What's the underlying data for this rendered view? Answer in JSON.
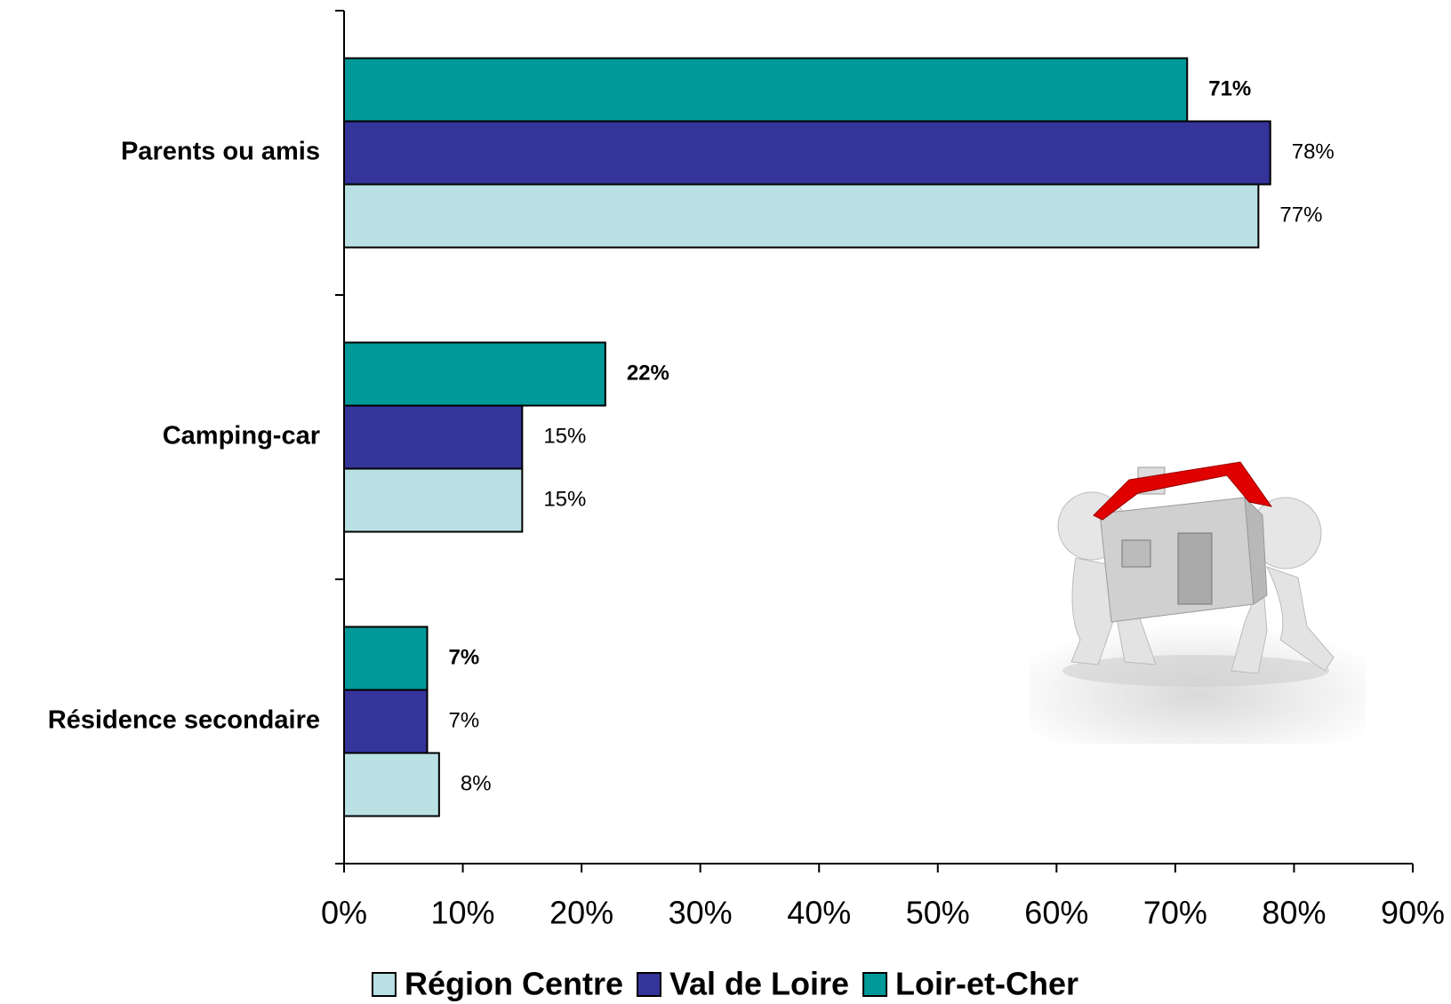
{
  "chart_data": {
    "type": "bar",
    "orientation": "horizontal",
    "categories": [
      "Parents ou amis",
      "Camping-car",
      "Résidence secondaire"
    ],
    "series": [
      {
        "name": "Région Centre",
        "color": "#b9e1e3",
        "values": [
          77,
          15,
          8
        ],
        "value_labels": [
          "77%",
          "15%",
          "8%"
        ]
      },
      {
        "name": "Val de Loire",
        "color": "#35349a",
        "values": [
          78,
          15,
          7
        ],
        "value_labels": [
          "78%",
          "15%",
          "7%"
        ]
      },
      {
        "name": "Loir-et-Cher",
        "color": "#009999",
        "values": [
          71,
          22,
          7
        ],
        "value_labels": [
          "71%",
          "22%",
          "7%"
        ]
      }
    ],
    "xlim": [
      0,
      90
    ],
    "xticks": [
      {
        "value": 0,
        "label": "0%"
      },
      {
        "value": 10,
        "label": "10%"
      },
      {
        "value": 20,
        "label": "20%"
      },
      {
        "value": 30,
        "label": "30%"
      },
      {
        "value": 40,
        "label": "40%"
      },
      {
        "value": 50,
        "label": "50%"
      },
      {
        "value": 60,
        "label": "60%"
      },
      {
        "value": 70,
        "label": "70%"
      },
      {
        "value": 80,
        "label": "80%"
      },
      {
        "value": 90,
        "label": "90%"
      }
    ],
    "legend": "bottom"
  }
}
